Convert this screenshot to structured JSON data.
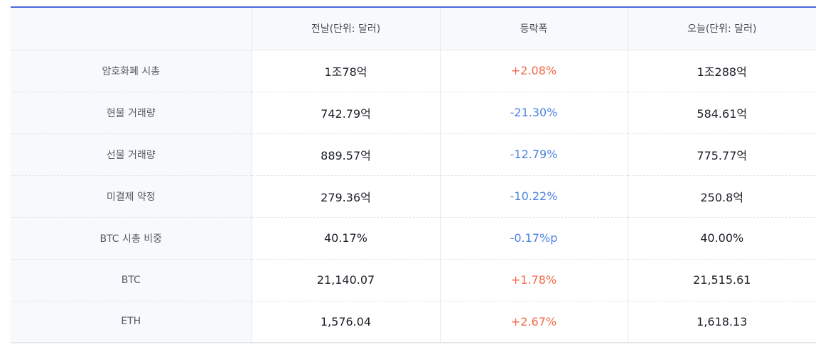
{
  "header": {
    "label_col": "",
    "prev": "전날(단위: 달러)",
    "change": "등락폭",
    "today": "오늘(단위: 달러)"
  },
  "rows": [
    {
      "label": "암호화폐 시총",
      "prev": "1조78억",
      "change": "+2.08%",
      "dir": "up",
      "today": "1조288억"
    },
    {
      "label": "현물 거래량",
      "prev": "742.79억",
      "change": "-21.30%",
      "dir": "down",
      "today": "584.61억"
    },
    {
      "label": "선물 거래량",
      "prev": "889.57억",
      "change": "-12.79%",
      "dir": "down",
      "today": "775.77억"
    },
    {
      "label": "미결제 약정",
      "prev": "279.36억",
      "change": "-10.22%",
      "dir": "down",
      "today": "250.8억"
    },
    {
      "label": "BTC 시총 비중",
      "prev": "40.17%",
      "change": "-0.17%p",
      "dir": "down",
      "today": "40.00%"
    },
    {
      "label": "BTC",
      "prev": "21,140.07",
      "change": "+1.78%",
      "dir": "up",
      "today": "21,515.61"
    },
    {
      "label": "ETH",
      "prev": "1,576.04",
      "change": "+2.67%",
      "dir": "up",
      "today": "1,618.13"
    }
  ],
  "colors": {
    "accent": "#4a67d6",
    "up": "#f06a48",
    "down": "#4a82e0"
  }
}
